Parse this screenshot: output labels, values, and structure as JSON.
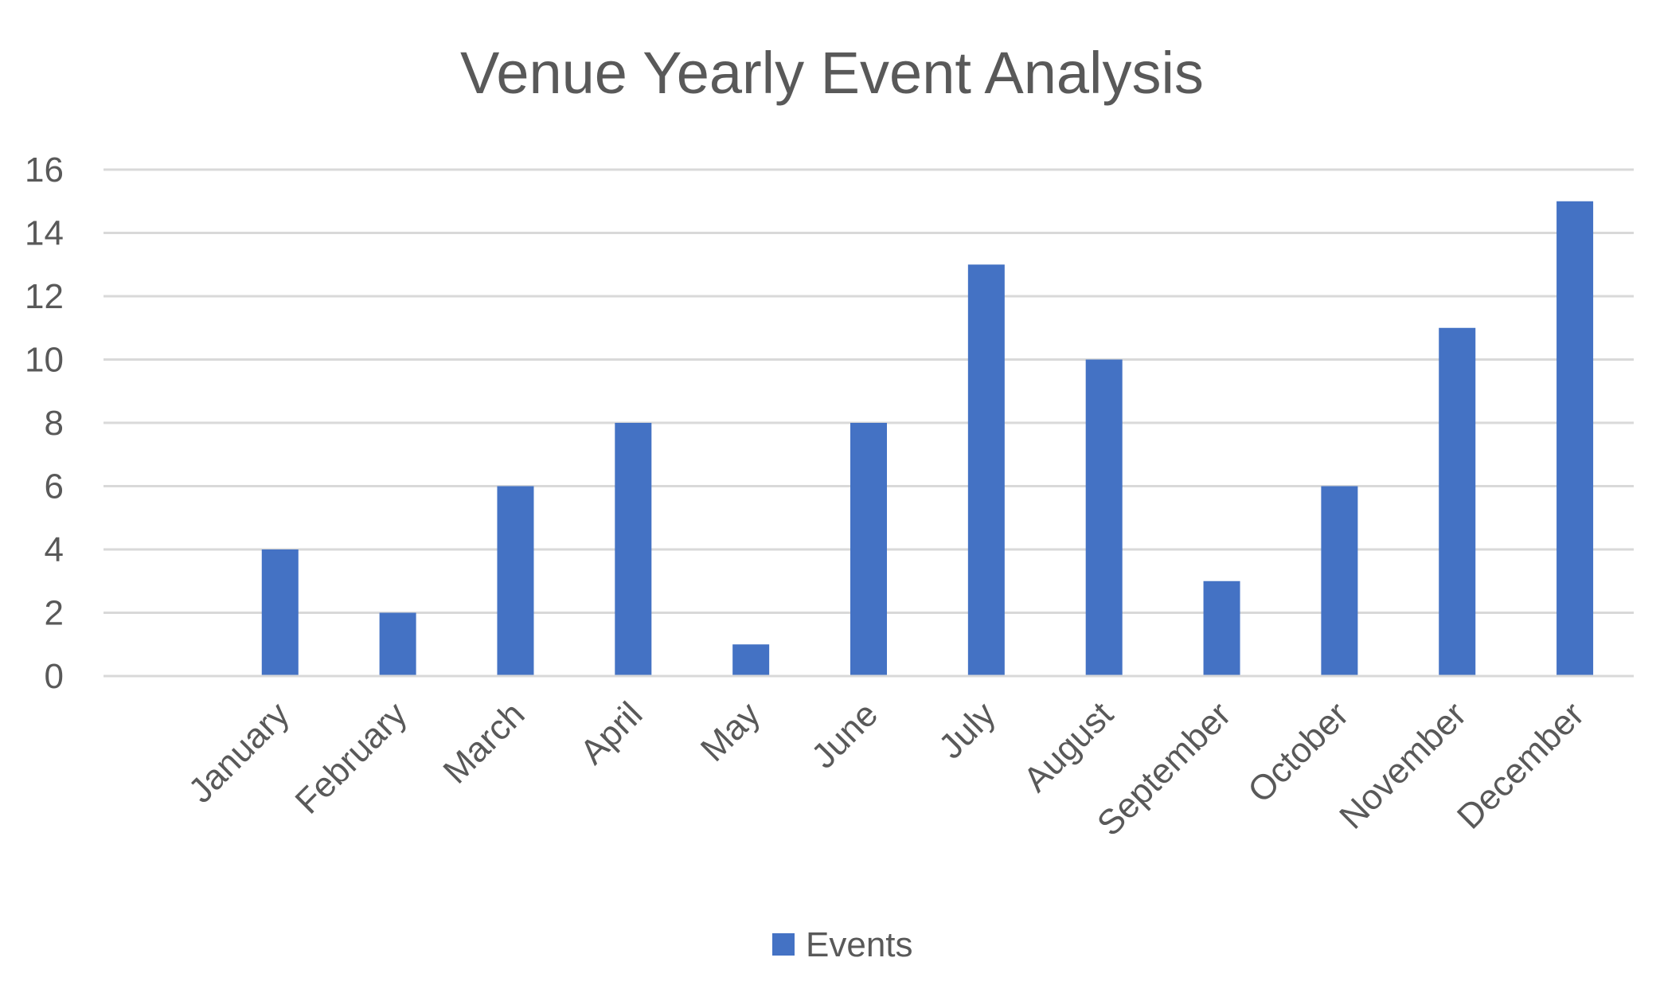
{
  "chart_data": {
    "type": "bar",
    "title": "Venue Yearly Event Analysis",
    "categories": [
      "",
      "January",
      "February",
      "March",
      "April",
      "May",
      "June",
      "July",
      "August",
      "September",
      "October",
      "November",
      "December"
    ],
    "series": [
      {
        "name": "Events",
        "values": [
          null,
          4,
          2,
          6,
          8,
          1,
          8,
          13,
          10,
          3,
          6,
          11,
          15
        ],
        "color": "#4472c4"
      }
    ],
    "xlabel": "",
    "ylabel": "",
    "ylim": [
      0,
      16
    ],
    "yticks": [
      "0",
      "2",
      "4",
      "6",
      "8",
      "10",
      "12",
      "14",
      "16"
    ],
    "grid": true,
    "legend_position": "bottom"
  },
  "colors": {
    "bar": "#4472c4",
    "text": "#595959",
    "grid": "#d9d9d9"
  }
}
